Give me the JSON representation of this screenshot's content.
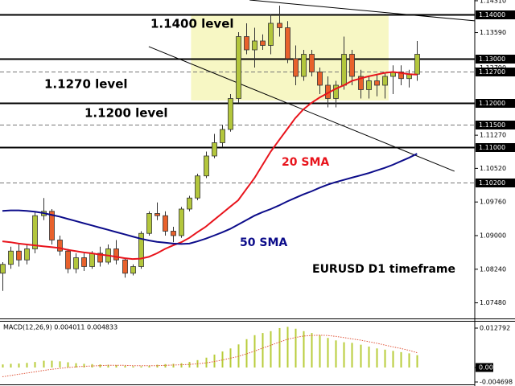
{
  "chart_data": [
    {
      "type": "candlestick",
      "annotations": [
        "1.1400 level",
        "1.1270 level",
        "1.1200 level",
        "EURUSD D1 timeframe"
      ],
      "open": [
        1.0815,
        1.0835,
        1.0865,
        1.0845,
        1.087,
        1.0945,
        1.0955,
        1.089,
        1.0865,
        1.0825,
        1.085,
        1.083,
        1.086,
        1.084,
        1.087,
        1.0845,
        1.0815,
        1.083,
        1.0905,
        1.095,
        1.0945,
        1.091,
        1.09,
        1.096,
        1.0985,
        1.1035,
        1.108,
        1.111,
        1.114,
        1.121,
        1.135,
        1.132,
        1.134,
        1.133,
        1.138,
        1.137,
        1.13,
        1.126,
        1.131,
        1.127,
        1.124,
        1.121,
        1.124,
        1.131,
        1.126,
        1.123,
        1.125,
        1.124,
        1.126,
        1.127,
        1.1255,
        1.1265
      ],
      "high": [
        1.084,
        1.0875,
        1.088,
        1.088,
        1.0955,
        1.0985,
        1.096,
        1.09,
        1.087,
        1.086,
        1.086,
        1.0865,
        1.0875,
        1.088,
        1.089,
        1.085,
        1.0835,
        1.091,
        1.0955,
        1.0975,
        1.0955,
        1.092,
        1.0965,
        1.099,
        1.104,
        1.109,
        1.113,
        1.115,
        1.122,
        1.136,
        1.138,
        1.137,
        1.1355,
        1.14,
        1.142,
        1.1385,
        1.133,
        1.132,
        1.132,
        1.128,
        1.126,
        1.125,
        1.135,
        1.132,
        1.1275,
        1.126,
        1.1265,
        1.127,
        1.1285,
        1.1285,
        1.1275,
        1.134
      ],
      "low": [
        1.0775,
        1.0825,
        1.083,
        1.0835,
        1.086,
        1.0935,
        1.088,
        1.0855,
        1.0815,
        1.0815,
        1.082,
        1.0825,
        1.083,
        1.0835,
        1.0835,
        1.0805,
        1.081,
        1.0825,
        1.09,
        1.0935,
        1.09,
        1.0885,
        1.0895,
        1.0955,
        1.098,
        1.103,
        1.1075,
        1.11,
        1.1135,
        1.12,
        1.131,
        1.128,
        1.132,
        1.131,
        1.135,
        1.129,
        1.124,
        1.125,
        1.126,
        1.122,
        1.119,
        1.119,
        1.123,
        1.124,
        1.121,
        1.121,
        1.1215,
        1.121,
        1.122,
        1.124,
        1.1235,
        1.125
      ],
      "close": [
        1.0835,
        1.0865,
        1.0845,
        1.087,
        1.0945,
        1.0955,
        1.089,
        1.0865,
        1.0825,
        1.085,
        1.083,
        1.086,
        1.084,
        1.087,
        1.0845,
        1.0815,
        1.083,
        1.0905,
        1.095,
        1.0945,
        1.091,
        1.09,
        1.096,
        1.0985,
        1.1035,
        1.108,
        1.111,
        1.114,
        1.121,
        1.135,
        1.132,
        1.134,
        1.133,
        1.138,
        1.137,
        1.13,
        1.126,
        1.131,
        1.127,
        1.124,
        1.121,
        1.124,
        1.131,
        1.126,
        1.123,
        1.125,
        1.124,
        1.126,
        1.127,
        1.1255,
        1.1265,
        1.131
      ],
      "up_color": "#b3c63c",
      "down_color": "#e8612c",
      "series": [
        {
          "name": "20 SMA",
          "color": "#e8141c",
          "values": [
            1.0887,
            1.0885,
            1.0882,
            1.088,
            1.0878,
            1.0876,
            1.0874,
            1.0872,
            1.0868,
            1.0865,
            1.0862,
            1.086,
            1.0857,
            1.0855,
            1.0852,
            1.0849,
            1.0847,
            1.0848,
            1.0852,
            1.086,
            1.087,
            1.0878,
            1.0885,
            1.0895,
            1.0908,
            1.092,
            1.0935,
            1.095,
            1.0965,
            1.098,
            1.1005,
            1.103,
            1.106,
            1.109,
            1.1115,
            1.114,
            1.1165,
            1.1185,
            1.12,
            1.1212,
            1.1222,
            1.1232,
            1.124,
            1.125,
            1.1255,
            1.126,
            1.1264,
            1.1268,
            1.127,
            1.1268,
            1.1265,
            1.1264
          ]
        },
        {
          "name": "50 SMA",
          "color": "#0c0c8a",
          "values": [
            1.0956,
            1.0957,
            1.0957,
            1.0956,
            1.0954,
            1.0951,
            1.0947,
            1.0943,
            1.0938,
            1.0933,
            1.0928,
            1.0923,
            1.0918,
            1.0913,
            1.0908,
            1.0903,
            1.0898,
            1.0893,
            1.0889,
            1.0886,
            1.0884,
            1.0882,
            1.0881,
            1.0882,
            1.0887,
            1.0893,
            1.09,
            1.0907,
            1.0915,
            1.0925,
            1.0935,
            1.0945,
            1.0953,
            1.096,
            1.0968,
            1.0977,
            1.0985,
            1.0993,
            1.1,
            1.1008,
            1.1015,
            1.1021,
            1.1026,
            1.1031,
            1.1036,
            1.1041,
            1.1047,
            1.1053,
            1.106,
            1.1068,
            1.1076,
            1.1085
          ]
        }
      ],
      "trend_lines": [
        {
          "x": [
            30.4,
            58.1
          ],
          "y": [
            1.14327,
            1.13856
          ]
        },
        {
          "x": [
            18.0,
            55.6
          ],
          "y": [
            1.13273,
            1.10455
          ]
        }
      ],
      "zones": [
        {
          "x": [
            23.2,
            47.5
          ],
          "y": [
            1.12055,
            1.14
          ],
          "color": "#f7f7c4"
        }
      ],
      "levels": [
        {
          "value": 1.14,
          "label": "1.14000",
          "style": "solid"
        },
        {
          "value": 1.13,
          "label": "1.13000",
          "style": "solid"
        },
        {
          "value": 1.127,
          "label": "1.12700",
          "style": "dashed"
        },
        {
          "value": 1.12,
          "label": "1.12000",
          "style": "solid"
        },
        {
          "value": 1.115,
          "label": "1.11500",
          "style": "dashed"
        },
        {
          "value": 1.11,
          "label": "1.11000",
          "style": "solid"
        },
        {
          "value": 1.102,
          "label": "1.10200",
          "style": "dashed"
        }
      ],
      "xlim": [
        -0.3,
        58.1
      ],
      "ylim": [
        1.07145,
        1.14327
      ],
      "yticks": [
        {
          "value": 1.1431,
          "label": "1.14310"
        },
        {
          "value": 1.1359,
          "label": "1.13590"
        },
        {
          "value": 1.1279,
          "label": "1.12790"
        },
        {
          "value": 1.1127,
          "label": "1.11270"
        },
        {
          "value": 1.1052,
          "label": "1.10520"
        },
        {
          "value": 1.0976,
          "label": "1.09760"
        },
        {
          "value": 1.09,
          "label": "1.09000"
        },
        {
          "value": 1.0824,
          "label": "1.08240"
        },
        {
          "value": 1.0748,
          "label": "1.07480"
        }
      ]
    },
    {
      "type": "bar",
      "title": "MACD(12,26,9) 0.004011 0.004833",
      "values": [
        0.001,
        0.0012,
        0.0013,
        0.0015,
        0.0018,
        0.0022,
        0.0022,
        0.002,
        0.0017,
        0.0014,
        0.0012,
        0.0011,
        0.001,
        0.0009,
        0.0008,
        0.0006,
        0.0004,
        0.0004,
        0.0006,
        0.0009,
        0.0011,
        0.0012,
        0.0014,
        0.0018,
        0.0024,
        0.0032,
        0.0042,
        0.0052,
        0.0062,
        0.0075,
        0.0092,
        0.0105,
        0.0112,
        0.0118,
        0.0128,
        0.0132,
        0.0126,
        0.0118,
        0.0112,
        0.0105,
        0.0096,
        0.0088,
        0.0082,
        0.008,
        0.0074,
        0.0068,
        0.0062,
        0.0058,
        0.0054,
        0.005,
        0.0046,
        0.004
      ],
      "color": "#b8cc3a",
      "signal": {
        "color": "#e0553a",
        "values": [
          -0.003,
          -0.0026,
          -0.0022,
          -0.0018,
          -0.0014,
          -0.001,
          -0.0006,
          -0.0003,
          0.0,
          0.0002,
          0.0004,
          0.0005,
          0.0006,
          0.0007,
          0.0007,
          0.0007,
          0.0006,
          0.0006,
          0.0006,
          0.0006,
          0.0007,
          0.0008,
          0.0009,
          0.001,
          0.0012,
          0.0015,
          0.0019,
          0.0024,
          0.003,
          0.0036,
          0.0044,
          0.0053,
          0.0063,
          0.0072,
          0.0082,
          0.0091,
          0.0097,
          0.0102,
          0.0104,
          0.0105,
          0.0104,
          0.0101,
          0.0097,
          0.0093,
          0.0089,
          0.0084,
          0.0079,
          0.0073,
          0.0067,
          0.0062,
          0.0056,
          0.0048
        ]
      },
      "xlim": [
        -0.3,
        58.1
      ],
      "ylim": [
        -0.00548,
        0.01488
      ],
      "yticks": [
        0.012792,
        -0.004698
      ],
      "levels": [
        {
          "value": 0,
          "label": "0.00"
        }
      ]
    }
  ]
}
